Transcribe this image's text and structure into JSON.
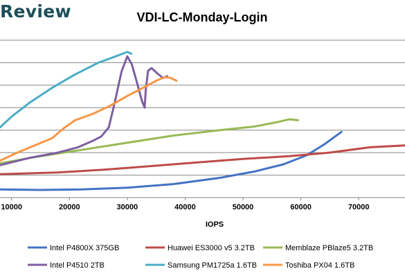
{
  "watermark": {
    "text": "Review"
  },
  "chart_data": {
    "type": "line",
    "title": "VDI-LC-Monday-Login",
    "xlabel": "IOPS",
    "ylabel": "",
    "xlim": [
      8000,
      78000
    ],
    "ylim": [
      0,
      1.75
    ],
    "x_ticks": [
      10000,
      20000,
      30000,
      40000,
      50000,
      60000,
      70000
    ],
    "grid": true,
    "legend_position": "bottom",
    "series": [
      {
        "name": "Intel P4800X 375GB",
        "color": "#4472c4",
        "points": [
          [
            8000,
            0.09
          ],
          [
            15000,
            0.085
          ],
          [
            22000,
            0.09
          ],
          [
            30000,
            0.11
          ],
          [
            38000,
            0.15
          ],
          [
            46000,
            0.22
          ],
          [
            52000,
            0.29
          ],
          [
            57000,
            0.37
          ],
          [
            61000,
            0.47
          ],
          [
            64000,
            0.59
          ],
          [
            67000,
            0.73
          ]
        ]
      },
      {
        "name": "Huawei ES3000 v5 3.2TB",
        "color": "#be4b48",
        "points": [
          [
            8000,
            0.26
          ],
          [
            18000,
            0.28
          ],
          [
            26000,
            0.31
          ],
          [
            34000,
            0.35
          ],
          [
            42000,
            0.39
          ],
          [
            50000,
            0.43
          ],
          [
            58000,
            0.46
          ],
          [
            65000,
            0.5
          ],
          [
            72000,
            0.56
          ],
          [
            78000,
            0.58
          ]
        ]
      },
      {
        "name": "Memblaze PBlaze5 3.2TB",
        "color": "#98b954",
        "points": [
          [
            8000,
            0.38
          ],
          [
            14000,
            0.45
          ],
          [
            22000,
            0.53
          ],
          [
            30000,
            0.61
          ],
          [
            38000,
            0.69
          ],
          [
            46000,
            0.75
          ],
          [
            52000,
            0.79
          ],
          [
            56000,
            0.84
          ],
          [
            58000,
            0.87
          ],
          [
            59500,
            0.86
          ]
        ]
      },
      {
        "name": "Intel P4510 2TB",
        "color": "#7d5fa0",
        "points": [
          [
            8000,
            0.36
          ],
          [
            13000,
            0.44
          ],
          [
            18000,
            0.5
          ],
          [
            21500,
            0.56
          ],
          [
            24000,
            0.63
          ],
          [
            25500,
            0.68
          ],
          [
            26800,
            0.78
          ],
          [
            27800,
            1.05
          ],
          [
            29000,
            1.4
          ],
          [
            30000,
            1.57
          ],
          [
            30800,
            1.48
          ],
          [
            31800,
            1.25
          ],
          [
            32500,
            1.08
          ],
          [
            33000,
            1.0
          ],
          [
            33200,
            1.2
          ],
          [
            33600,
            1.41
          ],
          [
            34200,
            1.44
          ],
          [
            35200,
            1.38
          ],
          [
            36200,
            1.33
          ],
          [
            36900,
            1.35
          ]
        ]
      },
      {
        "name": "Samsung PM1725a 1.6TB",
        "color": "#4bacc6",
        "points": [
          [
            8000,
            0.78
          ],
          [
            10000,
            0.9
          ],
          [
            13000,
            1.05
          ],
          [
            17000,
            1.22
          ],
          [
            21000,
            1.37
          ],
          [
            25000,
            1.5
          ],
          [
            28000,
            1.57
          ],
          [
            30000,
            1.62
          ],
          [
            30700,
            1.6
          ]
        ]
      },
      {
        "name": "Toshiba PX04 1.6TB",
        "color": "#f79646",
        "points": [
          [
            8000,
            0.41
          ],
          [
            11000,
            0.5
          ],
          [
            14000,
            0.58
          ],
          [
            17000,
            0.66
          ],
          [
            19000,
            0.77
          ],
          [
            21000,
            0.86
          ],
          [
            24000,
            0.93
          ],
          [
            27000,
            1.02
          ],
          [
            30000,
            1.13
          ],
          [
            33000,
            1.23
          ],
          [
            35000,
            1.3
          ],
          [
            36500,
            1.34
          ],
          [
            37500,
            1.33
          ],
          [
            38500,
            1.3
          ]
        ]
      }
    ]
  }
}
